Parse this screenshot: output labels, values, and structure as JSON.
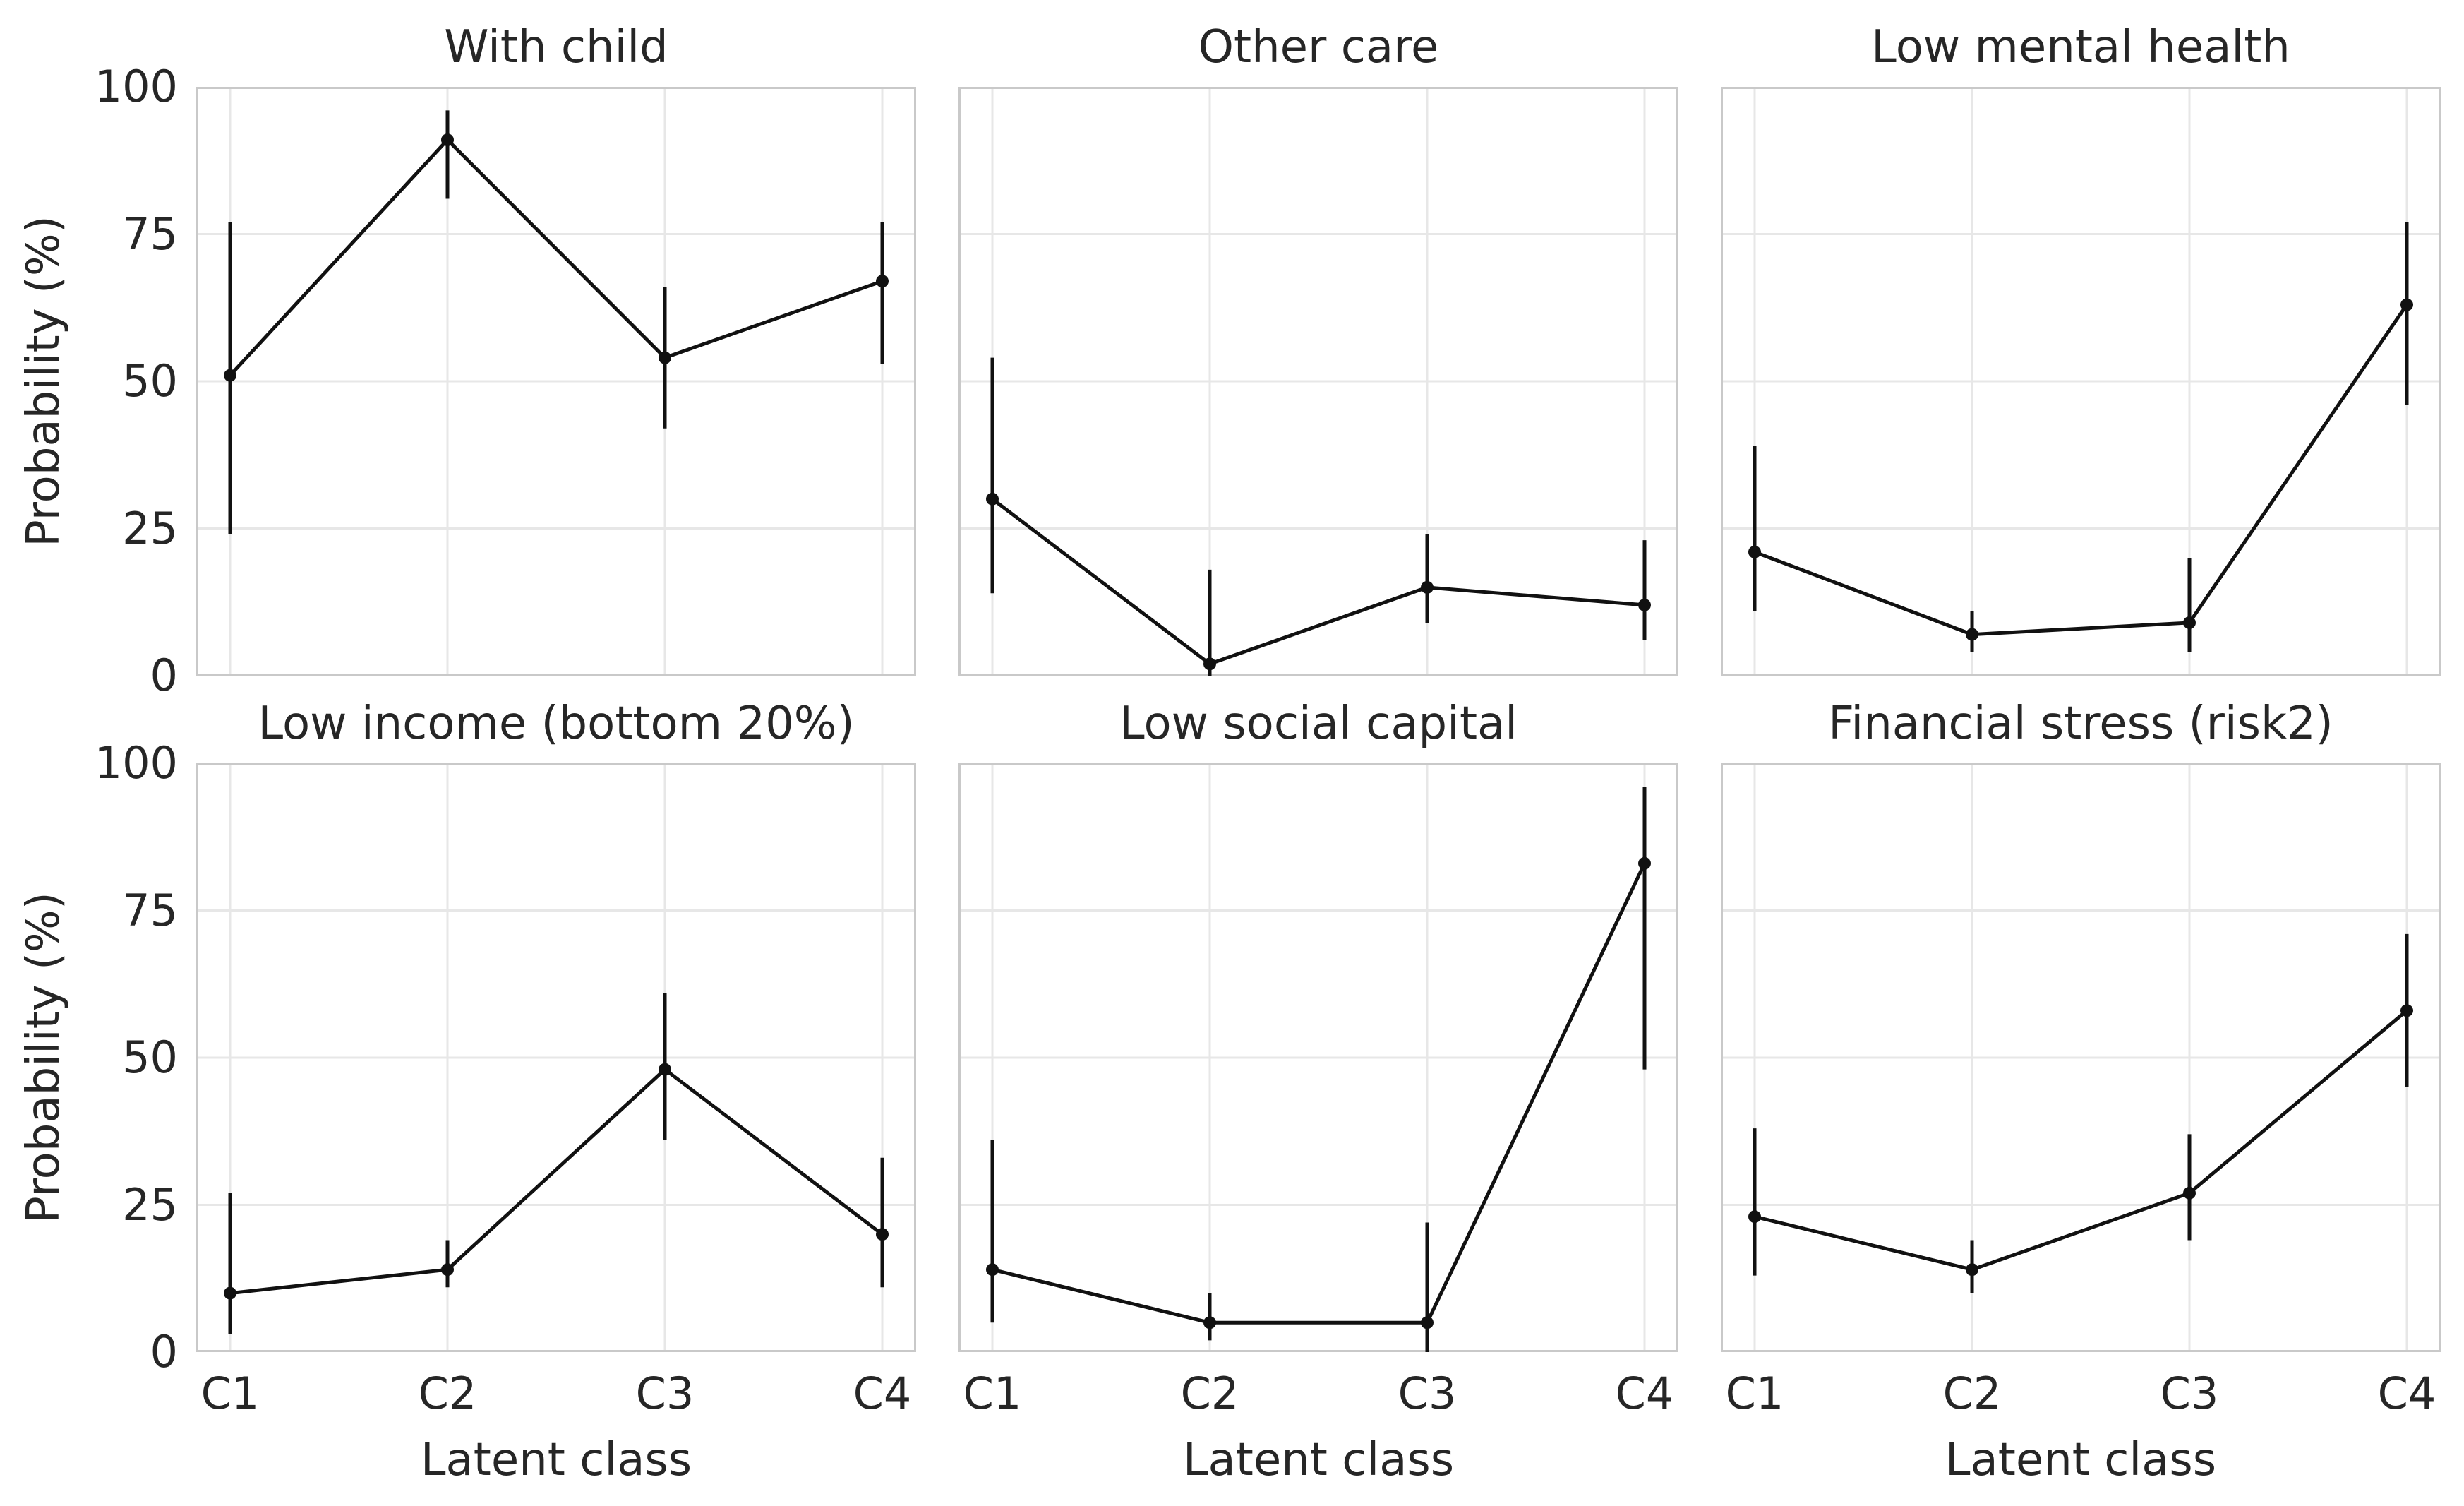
{
  "figure": {
    "ylabel": "Probability (%)",
    "xlabel": "Latent class",
    "background_color": "#ffffff",
    "text_color": "#262626",
    "grid_color": "#e7e7e7",
    "spine_color": "#c9c9c9",
    "series_color": "#111111"
  },
  "chart_data": [
    {
      "type": "line",
      "title": "With child",
      "categories": [
        "C1",
        "C2",
        "C3",
        "C4"
      ],
      "values": [
        51,
        91,
        54,
        67
      ],
      "ci_low": [
        24,
        81,
        42,
        53
      ],
      "ci_high": [
        77,
        96,
        66,
        77
      ],
      "xlabel": "Latent class",
      "ylabel": "Probability (%)",
      "ylim": [
        0,
        100
      ],
      "yticks": [
        0,
        25,
        50,
        75,
        100
      ],
      "grid": true,
      "error_bars": true,
      "legend": "none"
    },
    {
      "type": "line",
      "title": "Other care",
      "categories": [
        "C1",
        "C2",
        "C3",
        "C4"
      ],
      "values": [
        30,
        2,
        15,
        12
      ],
      "ci_low": [
        14,
        0,
        9,
        6
      ],
      "ci_high": [
        54,
        18,
        24,
        23
      ],
      "xlabel": "Latent class",
      "ylabel": "Probability (%)",
      "ylim": [
        0,
        100
      ],
      "yticks": [
        0,
        25,
        50,
        75,
        100
      ],
      "grid": true,
      "error_bars": true,
      "legend": "none"
    },
    {
      "type": "line",
      "title": "Low mental health",
      "categories": [
        "C1",
        "C2",
        "C3",
        "C4"
      ],
      "values": [
        21,
        7,
        9,
        63
      ],
      "ci_low": [
        11,
        4,
        4,
        46
      ],
      "ci_high": [
        39,
        11,
        20,
        77
      ],
      "xlabel": "Latent class",
      "ylabel": "Probability (%)",
      "ylim": [
        0,
        100
      ],
      "yticks": [
        0,
        25,
        50,
        75,
        100
      ],
      "grid": true,
      "error_bars": true,
      "legend": "none"
    },
    {
      "type": "line",
      "title": "Low income (bottom 20%)",
      "categories": [
        "C1",
        "C2",
        "C3",
        "C4"
      ],
      "values": [
        10,
        14,
        48,
        20
      ],
      "ci_low": [
        3,
        11,
        36,
        11
      ],
      "ci_high": [
        27,
        19,
        61,
        33
      ],
      "xlabel": "Latent class",
      "ylabel": "Probability (%)",
      "ylim": [
        0,
        100
      ],
      "yticks": [
        0,
        25,
        50,
        75,
        100
      ],
      "grid": true,
      "error_bars": true,
      "legend": "none"
    },
    {
      "type": "line",
      "title": "Low social capital",
      "categories": [
        "C1",
        "C2",
        "C3",
        "C4"
      ],
      "values": [
        14,
        5,
        5,
        83
      ],
      "ci_low": [
        5,
        2,
        0,
        48
      ],
      "ci_high": [
        36,
        10,
        22,
        96
      ],
      "xlabel": "Latent class",
      "ylabel": "Probability (%)",
      "ylim": [
        0,
        100
      ],
      "yticks": [
        0,
        25,
        50,
        75,
        100
      ],
      "grid": true,
      "error_bars": true,
      "legend": "none"
    },
    {
      "type": "line",
      "title": "Financial stress (risk2)",
      "categories": [
        "C1",
        "C2",
        "C3",
        "C4"
      ],
      "values": [
        23,
        14,
        27,
        58
      ],
      "ci_low": [
        13,
        10,
        19,
        45
      ],
      "ci_high": [
        38,
        19,
        37,
        71
      ],
      "xlabel": "Latent class",
      "ylabel": "Probability (%)",
      "ylim": [
        0,
        100
      ],
      "yticks": [
        0,
        25,
        50,
        75,
        100
      ],
      "grid": true,
      "error_bars": true,
      "legend": "none"
    }
  ]
}
